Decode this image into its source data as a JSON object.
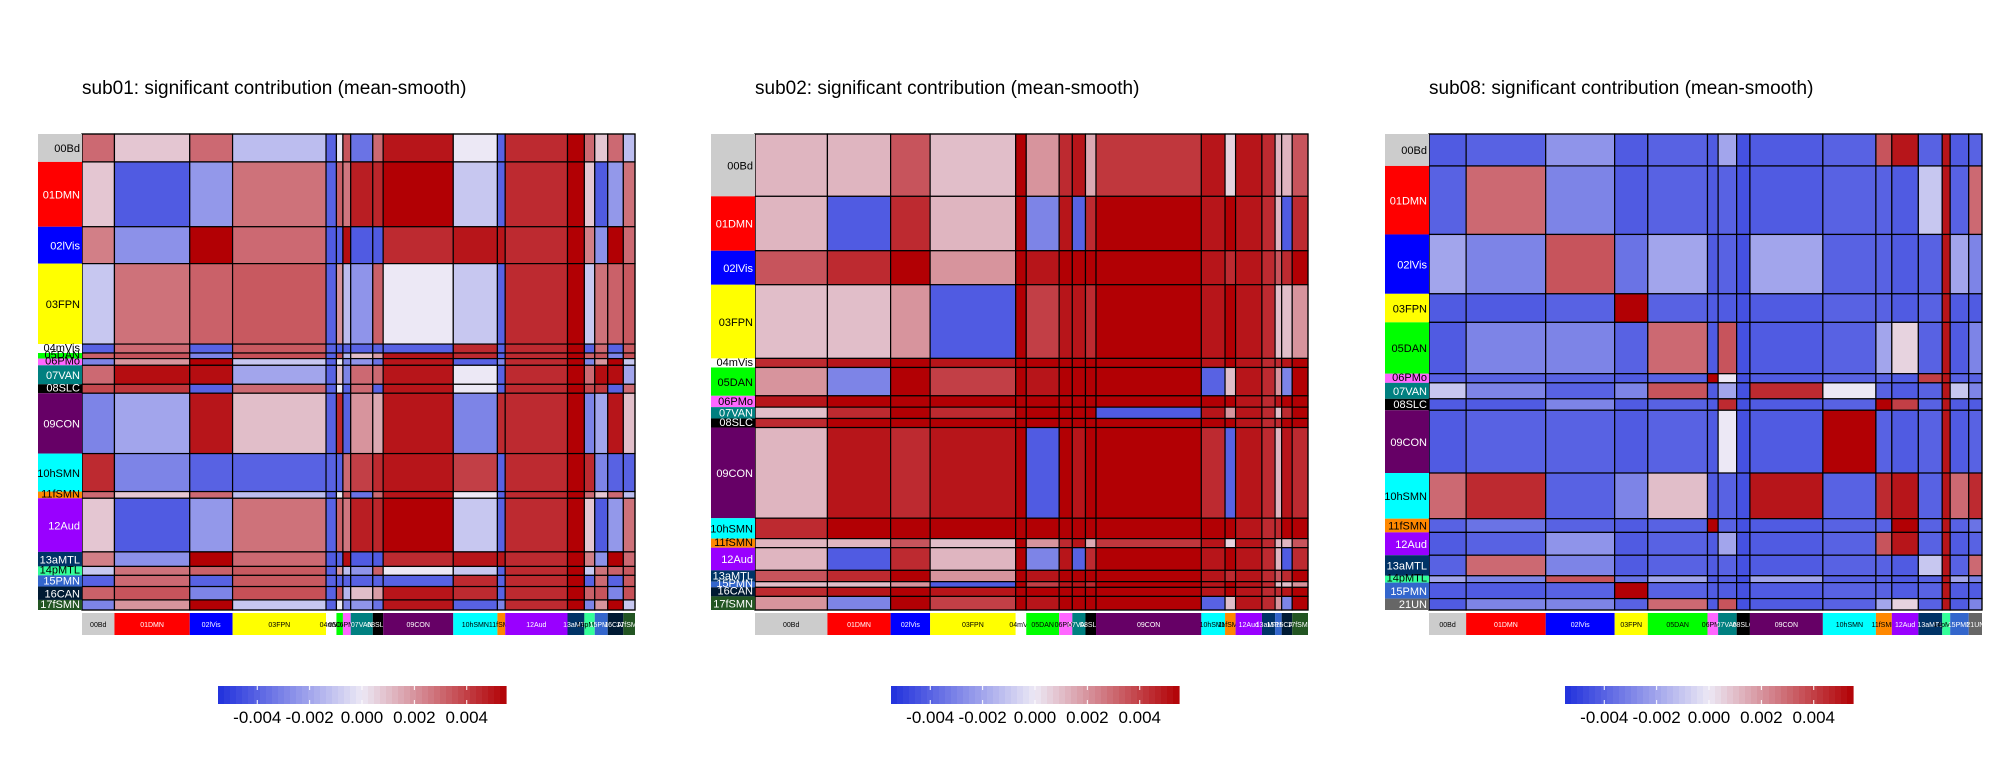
{
  "chart_data": [
    {
      "type": "heatmap",
      "title": "sub01: significant contribution (mean-smooth)",
      "networks": [
        {
          "label": "00Bd",
          "color": "#cccccc",
          "weight": 25
        },
        {
          "label": "01DMN",
          "color": "#ff0000",
          "weight": 58
        },
        {
          "label": "02lVis",
          "color": "#0000ff",
          "weight": 33
        },
        {
          "label": "03FPN",
          "color": "#ffff00",
          "weight": 72
        },
        {
          "label": "04mVis",
          "color": "#ffffff",
          "weight": 8
        },
        {
          "label": "05DAN",
          "color": "#00ff00",
          "weight": 5
        },
        {
          "label": "06PMo",
          "color": "#ff66ff",
          "weight": 6
        },
        {
          "label": "07VAN",
          "color": "#008080",
          "weight": 17
        },
        {
          "label": "08SLC",
          "color": "#000000",
          "weight": 8
        },
        {
          "label": "09CON",
          "color": "#660066",
          "weight": 54
        },
        {
          "label": "10hSMN",
          "color": "#00ffff",
          "weight": 34
        },
        {
          "label": "11fSMN",
          "color": "#ff8800",
          "weight": 6
        },
        {
          "label": "12Aud",
          "color": "#9900ff",
          "weight": 48
        },
        {
          "label": "13aMTL",
          "color": "#003366",
          "weight": 13
        },
        {
          "label": "14pMTL",
          "color": "#33ff99",
          "weight": 8
        },
        {
          "label": "15PMN",
          "color": "#3366cc",
          "weight": 10
        },
        {
          "label": "16CAN",
          "color": "#001a33",
          "weight": 12
        },
        {
          "label": "17fSMN",
          "color": "#225522",
          "weight": 9
        }
      ],
      "values": [
        [
          0.003,
          0.0008,
          0.003,
          -0.0013,
          -0.004,
          0.0,
          0.0035,
          -0.0035,
          0.003,
          0.005,
          0.0,
          -0.004,
          0.0045,
          0.006
        ],
        [
          0.0008,
          -0.0042,
          -0.0024,
          0.0028,
          -0.004,
          0.0032,
          0.0027,
          0.0048,
          0.0046,
          0.0055,
          -0.001,
          -0.004,
          0.0045,
          0.006
        ],
        [
          0.0025,
          -0.0026,
          0.0055,
          0.003,
          -0.0042,
          -0.004,
          0.0052,
          -0.0042,
          -0.0042,
          0.0045,
          0.005,
          0.005,
          0.0045,
          0.006
        ],
        [
          -0.001,
          0.0028,
          0.0032,
          0.0034,
          -0.004,
          0.002,
          -0.0013,
          -0.0025,
          0.0032,
          0.0,
          -0.001,
          -0.004,
          0.0045,
          0.006
        ],
        [
          -0.004,
          0.003,
          -0.004,
          0.0034,
          -0.004,
          -0.004,
          -0.004,
          -0.004,
          -0.004,
          -0.004,
          0.0045,
          -0.004,
          0.0045,
          0.006
        ],
        [
          0.0032,
          0.0035,
          -0.003,
          0.0036,
          -0.004,
          0.0035,
          -0.0015,
          0.001,
          0.0018,
          0.005,
          0.0045,
          -0.004,
          0.0045,
          0.006
        ],
        [
          -0.003,
          0.002,
          0.0055,
          -0.001,
          -0.004,
          0.0,
          -0.003,
          -0.0025,
          -0.0035,
          0.005,
          -0.004,
          -0.003,
          0.0045,
          0.006
        ],
        [
          0.003,
          0.0052,
          0.0052,
          -0.002,
          -0.004,
          0.001,
          -0.003,
          0.003,
          0.003,
          0.005,
          0.0,
          -0.004,
          0.0045,
          0.006
        ],
        [
          0.0038,
          0.0042,
          -0.004,
          0.003,
          -0.004,
          0.0,
          -0.004,
          0.003,
          -0.004,
          0.005,
          0.0,
          -0.004,
          0.0045,
          0.006
        ],
        [
          -0.003,
          -0.002,
          0.005,
          0.001,
          -0.004,
          0.0045,
          -0.004,
          0.002,
          0.0015,
          0.005,
          -0.003,
          0.0045,
          0.0045,
          0.006
        ],
        [
          0.0045,
          -0.003,
          -0.004,
          -0.004,
          -0.004,
          -0.004,
          0.003,
          0.004,
          0.0045,
          0.005,
          0.004,
          -0.004,
          0.0045,
          0.006
        ]
      ],
      "colorbar": {
        "ticks": [
          "-0.004",
          "-0.002",
          "0.000",
          "0.002",
          "0.004"
        ],
        "min": -0.0055,
        "max": 0.0055
      }
    },
    {
      "type": "heatmap",
      "title": "sub02: significant contribution (mean-smooth)",
      "networks": [
        {
          "label": "00Bd",
          "color": "#cccccc",
          "weight": 55
        },
        {
          "label": "01DMN",
          "color": "#ff0000",
          "weight": 48
        },
        {
          "label": "02lVis",
          "color": "#0000ff",
          "weight": 30
        },
        {
          "label": "03FPN",
          "color": "#ffff00",
          "weight": 65
        },
        {
          "label": "04mVis",
          "color": "#ffffff",
          "weight": 8
        },
        {
          "label": "05DAN",
          "color": "#00ff00",
          "weight": 25
        },
        {
          "label": "06PMo",
          "color": "#ff66ff",
          "weight": 10
        },
        {
          "label": "07VAN",
          "color": "#008080",
          "weight": 10
        },
        {
          "label": "08SLC",
          "color": "#000000",
          "weight": 8
        },
        {
          "label": "09CON",
          "color": "#660066",
          "weight": 80
        },
        {
          "label": "10hSMN",
          "color": "#00ffff",
          "weight": 18
        },
        {
          "label": "11fSMN",
          "color": "#ff8800",
          "weight": 8
        },
        {
          "label": "12Aud",
          "color": "#9900ff",
          "weight": 20
        },
        {
          "label": "13aMTL",
          "color": "#003366",
          "weight": 10
        },
        {
          "label": "15PMN",
          "color": "#3366cc",
          "weight": 5
        },
        {
          "label": "16CAN",
          "color": "#001a33",
          "weight": 8
        },
        {
          "label": "17fSMN",
          "color": "#225522",
          "weight": 12
        }
      ],
      "values": [
        [
          0.0012,
          0.0012,
          0.0035,
          0.001,
          0.0055,
          0.002,
          0.0045,
          0.005,
          0.0015,
          0.0042,
          0.005,
          0.0005,
          0.005,
          0.0045
        ],
        [
          0.0012,
          -0.0042,
          0.0045,
          0.0012,
          0.0055,
          -0.003,
          0.005,
          -0.004,
          0.0045,
          0.0055,
          0.005,
          0.0055,
          0.005,
          0.0045
        ],
        [
          0.0035,
          0.0045,
          0.0055,
          0.002,
          0.0055,
          0.005,
          0.0055,
          0.0055,
          0.0055,
          0.0055,
          0.005,
          0.0045,
          0.005,
          0.0045
        ],
        [
          0.001,
          0.001,
          0.002,
          -0.0042,
          0.0055,
          0.004,
          0.005,
          0.005,
          0.0045,
          0.0055,
          0.005,
          0.0055,
          0.005,
          0.0045
        ],
        [
          0.0045,
          0.005,
          0.0055,
          0.005,
          0.0055,
          0.0055,
          0.0055,
          0.0055,
          0.0055,
          0.0055,
          0.005,
          0.0055,
          0.005,
          0.0045
        ],
        [
          0.002,
          -0.003,
          0.0055,
          0.004,
          0.0055,
          0.005,
          0.0055,
          0.0055,
          0.0055,
          0.0055,
          -0.004,
          0.001,
          0.005,
          0.0045
        ],
        [
          0.005,
          0.0055,
          0.0055,
          0.0055,
          0.0055,
          0.0055,
          0.0055,
          0.0055,
          0.0055,
          0.0055,
          0.0055,
          0.0055,
          0.005,
          0.0045
        ],
        [
          0.001,
          0.0045,
          0.0055,
          0.0045,
          0.0055,
          0.0055,
          0.0055,
          0.0055,
          0.0055,
          -0.0042,
          0.005,
          0.002,
          0.005,
          0.0045
        ],
        [
          0.0045,
          0.0055,
          0.0055,
          0.0055,
          0.0055,
          0.0055,
          0.0055,
          0.0055,
          0.0055,
          0.0055,
          0.0055,
          0.0055,
          0.005,
          0.0045
        ],
        [
          0.0012,
          0.005,
          0.0045,
          0.005,
          0.0055,
          -0.0042,
          0.0055,
          0.005,
          0.0055,
          0.0055,
          0.0045,
          -0.004,
          0.005,
          0.0045
        ],
        [
          0.0045,
          0.0055,
          0.0055,
          0.0055,
          0.0055,
          0.0055,
          0.0055,
          0.0055,
          0.0055,
          0.0055,
          0.0055,
          0.0055,
          0.005,
          0.0045
        ]
      ],
      "colorbar": {
        "ticks": [
          "-0.004",
          "-0.002",
          "0.000",
          "0.002",
          "0.004"
        ],
        "min": -0.0055,
        "max": 0.0055
      }
    },
    {
      "type": "heatmap",
      "title": "sub08: significant contribution (mean-smooth)",
      "networks": [
        {
          "label": "00Bd",
          "color": "#cccccc",
          "weight": 28
        },
        {
          "label": "01DMN",
          "color": "#ff0000",
          "weight": 60
        },
        {
          "label": "02lVis",
          "color": "#0000ff",
          "weight": 52
        },
        {
          "label": "03FPN",
          "color": "#ffff00",
          "weight": 25
        },
        {
          "label": "05DAN",
          "color": "#00ff00",
          "weight": 45
        },
        {
          "label": "06PMo",
          "color": "#ff66ff",
          "weight": 8
        },
        {
          "label": "07VAN",
          "color": "#008080",
          "weight": 14
        },
        {
          "label": "08SLC",
          "color": "#000000",
          "weight": 10
        },
        {
          "label": "09CON",
          "color": "#660066",
          "weight": 55
        },
        {
          "label": "10hSMN",
          "color": "#00ffff",
          "weight": 40
        },
        {
          "label": "11fSMN",
          "color": "#ff8800",
          "weight": 12
        },
        {
          "label": "12Aud",
          "color": "#9900ff",
          "weight": 20
        },
        {
          "label": "13aMTL",
          "color": "#003366",
          "weight": 18
        },
        {
          "label": "14pMTL",
          "color": "#33ff99",
          "weight": 6
        },
        {
          "label": "15PMN",
          "color": "#3366cc",
          "weight": 14
        },
        {
          "label": "21UN",
          "color": "#666666",
          "weight": 10
        }
      ],
      "values": [
        [
          -0.0042,
          -0.004,
          -0.0025,
          -0.0042,
          -0.004,
          -0.0042,
          -0.002,
          -0.0045,
          -0.0042,
          -0.004,
          0.0035,
          0.005,
          -0.004,
          0.005
        ],
        [
          -0.004,
          0.003,
          -0.003,
          -0.0042,
          -0.004,
          -0.0042,
          -0.004,
          -0.0045,
          -0.0042,
          -0.004,
          -0.004,
          -0.0042,
          -0.001,
          0.005
        ],
        [
          -0.002,
          -0.003,
          0.0035,
          -0.0035,
          -0.002,
          -0.0042,
          -0.004,
          -0.0045,
          -0.002,
          -0.004,
          -0.004,
          -0.0042,
          -0.004,
          0.005
        ],
        [
          -0.0042,
          -0.0042,
          -0.004,
          0.0055,
          -0.004,
          -0.0042,
          -0.0042,
          -0.0045,
          -0.0042,
          -0.004,
          -0.004,
          -0.0042,
          -0.004,
          0.005
        ],
        [
          -0.0042,
          -0.003,
          -0.003,
          -0.004,
          0.003,
          -0.0042,
          0.0035,
          -0.0045,
          -0.0042,
          -0.004,
          -0.002,
          0.0005,
          -0.004,
          0.005
        ],
        [
          -0.004,
          -0.004,
          -0.004,
          -0.0042,
          -0.004,
          0.0055,
          0.0,
          -0.0045,
          -0.0042,
          -0.004,
          -0.004,
          -0.0042,
          0.004,
          0.005
        ],
        [
          -0.001,
          -0.003,
          -0.004,
          -0.003,
          0.0035,
          -0.0042,
          -0.002,
          -0.0045,
          0.0045,
          0.0,
          -0.004,
          -0.0042,
          -0.004,
          0.005
        ],
        [
          -0.0042,
          -0.0042,
          -0.003,
          -0.0042,
          -0.004,
          -0.0042,
          0.0045,
          -0.0045,
          -0.0042,
          -0.004,
          0.0055,
          0.004,
          -0.004,
          0.005
        ],
        [
          -0.0042,
          -0.004,
          -0.004,
          -0.0042,
          -0.004,
          -0.0042,
          0.0,
          -0.0045,
          -0.0042,
          0.0055,
          -0.004,
          -0.0042,
          -0.004,
          0.005
        ],
        [
          0.003,
          0.0045,
          -0.004,
          -0.003,
          0.001,
          -0.0042,
          -0.004,
          -0.0045,
          0.005,
          -0.004,
          0.0045,
          0.005,
          -0.004,
          0.005
        ],
        [
          -0.004,
          -0.0035,
          -0.004,
          -0.0042,
          -0.004,
          0.0055,
          -0.004,
          -0.0045,
          -0.0042,
          -0.004,
          -0.004,
          0.0055,
          -0.004,
          0.005
        ]
      ],
      "colorbar": {
        "ticks": [
          "-0.004",
          "-0.002",
          "0.000",
          "0.002",
          "0.004"
        ],
        "min": -0.0055,
        "max": 0.0055
      }
    }
  ]
}
